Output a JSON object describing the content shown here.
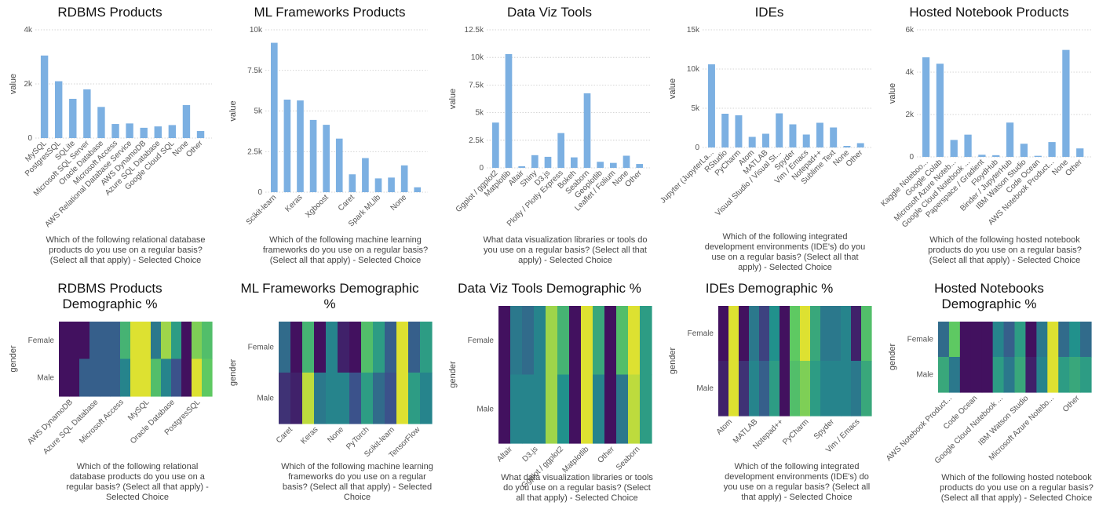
{
  "colors": {
    "bar": "#7cb0e2",
    "grid": "#c8c8c8",
    "viridis": [
      "#440154",
      "#3b528b",
      "#21918c",
      "#5ec962",
      "#fde725"
    ]
  },
  "chart_data": [
    {
      "id": "rdbms",
      "type": "bar",
      "title": [
        "RDBMS Products"
      ],
      "ylabel": "value",
      "ylim": [
        0,
        4000
      ],
      "yticks": [
        0,
        2000,
        4000
      ],
      "ytick_labels": [
        "0",
        "2k",
        "4k"
      ],
      "categories": [
        "MySQL",
        "PostgresSQL",
        "SQLite",
        "Microsoft SQL Server",
        "Oracle Database",
        "Microsoft Access",
        "AWS Relational Database Service",
        "AWS DynamoDB",
        "Azure SQL Database",
        "Google Cloud SQL",
        "None",
        "Other"
      ],
      "values": [
        3050,
        2100,
        1450,
        1800,
        1150,
        520,
        540,
        380,
        430,
        480,
        1220,
        260
      ],
      "xlabel": [
        "Which of the following relational database",
        "products do you use on a regular basis?",
        "(Select all that apply) - Selected Choice"
      ]
    },
    {
      "id": "ml",
      "type": "bar",
      "title": [
        "ML Frameworks Products"
      ],
      "ylabel": "value",
      "ylim": [
        0,
        10000
      ],
      "yticks": [
        0,
        2500,
        5000,
        7500,
        10000
      ],
      "ytick_labels": [
        "0",
        "2.5k",
        "5k",
        "7.5k",
        "10k"
      ],
      "categories": [
        "Scikit-learn",
        "",
        "Keras",
        "",
        "Xgboost",
        "",
        "Caret",
        "",
        "Spark MLlib",
        "",
        "None",
        ""
      ],
      "values": [
        9200,
        5700,
        5650,
        4450,
        4150,
        3300,
        1100,
        2100,
        850,
        900,
        1650,
        300
      ],
      "xlabel": [
        "Which of the following machine learning",
        "frameworks do you use on a regular basis?",
        "(Select all that apply) - Selected Choice"
      ]
    },
    {
      "id": "dataviz",
      "type": "bar",
      "title": [
        "Data Viz Tools"
      ],
      "ylabel": "value",
      "ylim": [
        0,
        12500
      ],
      "yticks": [
        0,
        2500,
        5000,
        7500,
        10000,
        12500
      ],
      "ytick_labels": [
        "0",
        "2.5k",
        "5k",
        "7.5k",
        "10k",
        "12.5k"
      ],
      "categories": [
        "Ggplot / ggplot2",
        "Matplotlib",
        "Altair",
        "Shiny",
        "D3.js",
        "Plotly / Plotly Express",
        "Bokeh",
        "Seaborn",
        "Geoplotlib",
        "Leaflet / Folium",
        "None",
        "Other"
      ],
      "values": [
        4100,
        10300,
        150,
        1150,
        1000,
        3150,
        950,
        6750,
        550,
        450,
        1100,
        350
      ],
      "xlabel": [
        "What data visualization libraries or tools do",
        "you use on a regular basis? (Select all that",
        "apply) - Selected Choice"
      ]
    },
    {
      "id": "ides",
      "type": "bar",
      "title": [
        "IDEs"
      ],
      "ylabel": "value",
      "ylim": [
        0,
        15000
      ],
      "yticks": [
        0,
        5000,
        10000,
        15000
      ],
      "ytick_labels": [
        "0",
        "5k",
        "10k",
        "15k"
      ],
      "categories": [
        "Jupyter (JupyterLa...",
        "RStudio",
        "PyCharm",
        "Atom",
        "MATLAB",
        "Visual Studio / Visual St...",
        "Spyder",
        "Vim / Emacs",
        "Notepad++",
        "Sublime Text",
        "None",
        "Other"
      ],
      "values": [
        10600,
        4300,
        4100,
        1350,
        1750,
        4350,
        2950,
        1650,
        3150,
        2550,
        200,
        550
      ],
      "xlabel": [
        "Which of the following integrated",
        "development environments (IDE's) do you",
        "use on a regular basis? (Select all that",
        "apply) - Selected Choice"
      ]
    },
    {
      "id": "notebooks",
      "type": "bar",
      "title": [
        "Hosted Notebook Products"
      ],
      "ylabel": "value",
      "ylim": [
        0,
        6000
      ],
      "yticks": [
        0,
        2000,
        4000,
        6000
      ],
      "ytick_labels": [
        "0",
        "2k",
        "4k",
        "6k"
      ],
      "categories": [
        "Kaggle Noteboo...",
        "Google Colab",
        "Microsoft Azure Noteb...",
        "Google Cloud Notebook ...",
        "Paperspace / Gradient",
        "FloydHub",
        "Binder / JupyterHub",
        "IBM Watson Studio",
        "Code Ocean",
        "AWS Notebook Product...",
        "None",
        "Other"
      ],
      "values": [
        4700,
        4400,
        800,
        1050,
        100,
        80,
        1620,
        620,
        50,
        700,
        5050,
        400
      ],
      "xlabel": [
        "Which of the following hosted notebook",
        "products do you use on a regular basis?",
        "(Select all that apply) - Selected Choice"
      ]
    },
    {
      "id": "rdbms_demo",
      "type": "heatmap",
      "title": [
        "RDBMS Products",
        "Demographic %"
      ],
      "ylabel": "gender",
      "rows": [
        "Female",
        "Male"
      ],
      "col_labels": [
        "AWS DynamoDB",
        "Azure SQL Database",
        "Microsoft Access",
        "MySQL",
        "Oracle Database",
        "PostgresSQL"
      ],
      "values": [
        [
          0.05,
          0.05,
          0.05,
          0.3,
          0.3,
          0.3,
          0.65,
          0.95,
          0.95,
          0.4,
          0.85,
          0.55,
          0.05,
          0.8,
          0.7
        ],
        [
          0.05,
          0.05,
          0.3,
          0.3,
          0.3,
          0.3,
          0.45,
          0.95,
          0.95,
          0.7,
          0.45,
          0.25,
          0.05,
          0.95,
          0.75
        ]
      ],
      "xlabel": [
        "Which of the following relational",
        "database products do you use on a",
        "regular basis? (Select all that apply) -",
        "Selected Choice"
      ]
    },
    {
      "id": "ml_demo",
      "type": "heatmap",
      "title": [
        "ML Frameworks Demographic",
        "%"
      ],
      "ylabel": "gender",
      "rows": [
        "Female",
        "Male"
      ],
      "col_labels": [
        "Caret",
        "Keras",
        "None",
        "PyTorch",
        "Scikit-learn",
        "TensorFlow"
      ],
      "values": [
        [
          0.35,
          0.05,
          0.65,
          0.05,
          0.45,
          0.1,
          0.05,
          0.7,
          0.55,
          0.3,
          0.95,
          0.3,
          0.55
        ],
        [
          0.15,
          0.1,
          0.9,
          0.4,
          0.45,
          0.45,
          0.25,
          0.55,
          0.35,
          0.25,
          0.95,
          0.55,
          0.45
        ]
      ],
      "xlabel": [
        "Which of the following machine learning",
        "frameworks do you use on a regular",
        "basis? (Select all that apply) - Selected",
        "Choice"
      ]
    },
    {
      "id": "dataviz_demo",
      "type": "heatmap",
      "title": [
        "Data Viz Tools Demographic %"
      ],
      "ylabel": "gender",
      "rows": [
        "Female",
        "Male"
      ],
      "col_labels": [
        "Altair",
        "D3.js",
        "Ggplot / ggplot2",
        "Matplotlib",
        "Other",
        "Seaborn"
      ],
      "values": [
        [
          0.05,
          0.4,
          0.35,
          0.45,
          0.85,
          0.65,
          0.05,
          0.95,
          0.6,
          0.05,
          0.7,
          0.95,
          0.55
        ],
        [
          0.05,
          0.45,
          0.45,
          0.45,
          0.85,
          0.5,
          0.05,
          0.95,
          0.45,
          0.05,
          0.4,
          0.9,
          0.55
        ]
      ],
      "xlabel": [
        "What data visualization libraries or tools",
        "do you use on a regular basis? (Select",
        "all that apply) - Selected Choice"
      ]
    },
    {
      "id": "ides_demo",
      "type": "heatmap",
      "title": [
        "IDEs Demographic %"
      ],
      "ylabel": "gender",
      "rows": [
        "Female",
        "Male"
      ],
      "col_labels": [
        "Atom",
        "MATLAB",
        "Notepad++",
        "PyCharm",
        "Spyder",
        "Vim / Emacs"
      ],
      "values": [
        [
          0.05,
          0.95,
          0.05,
          0.4,
          0.2,
          0.5,
          0.05,
          0.75,
          0.95,
          0.6,
          0.4,
          0.4,
          0.45,
          0.1,
          0.7
        ],
        [
          0.1,
          0.95,
          0.15,
          0.45,
          0.3,
          0.55,
          0.05,
          0.7,
          0.8,
          0.55,
          0.45,
          0.45,
          0.45,
          0.4,
          0.6
        ]
      ],
      "xlabel": [
        "Which of the following integrated",
        "development environments (IDE's) do",
        "you use on a regular basis? (Select all",
        "that apply) - Selected Choice"
      ]
    },
    {
      "id": "notebooks_demo",
      "type": "heatmap",
      "title": [
        "Hosted Notebooks",
        "Demographic %"
      ],
      "ylabel": "gender",
      "rows": [
        "Female",
        "Male"
      ],
      "col_labels": [
        "AWS Notebook Product...",
        "Code Ocean",
        "Google Cloud Notebook ...",
        "IBM Watson Studio",
        "Microsoft Azure Notebo...",
        "Other"
      ],
      "values": [
        [
          0.35,
          0.75,
          0.05,
          0.05,
          0.05,
          0.45,
          0.3,
          0.55,
          0.05,
          0.4,
          0.95,
          0.35,
          0.5,
          0.35
        ],
        [
          0.6,
          0.4,
          0.05,
          0.05,
          0.05,
          0.55,
          0.4,
          0.6,
          0.1,
          0.45,
          0.95,
          0.55,
          0.6,
          0.55
        ]
      ],
      "xlabel": [
        "Which of the following hosted notebook",
        "products do you use on a regular basis?",
        "(Select all that apply) - Selected Choice"
      ]
    }
  ]
}
